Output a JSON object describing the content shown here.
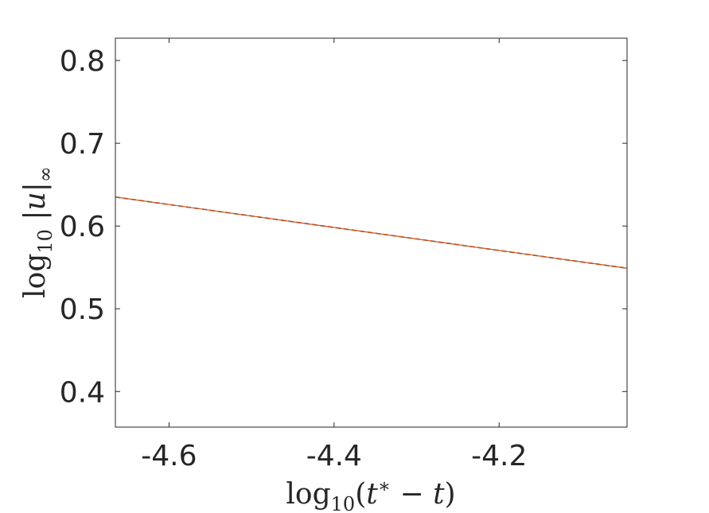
{
  "chart_data": {
    "type": "line",
    "title": "",
    "xlabel": "log10(t* − t)",
    "ylabel": "log10 |u|∞",
    "xlim": [
      -4.665,
      -4.045
    ],
    "ylim": [
      0.357,
      0.827
    ],
    "xticks": [
      -4.6,
      -4.4,
      -4.2
    ],
    "xtick_labels": [
      "-4.6",
      "-4.4",
      "-4.2"
    ],
    "yticks": [
      0.4,
      0.5,
      0.6,
      0.7,
      0.8
    ],
    "ytick_labels": [
      "0.4",
      "0.5",
      "0.6",
      "0.7",
      "0.8"
    ],
    "grid": false,
    "legend": "none",
    "series": [
      {
        "color": "#333333",
        "style": "dashed",
        "x": [
          -4.665,
          -4.045
        ],
        "y": [
          0.635,
          0.549
        ]
      },
      {
        "color": "#d95319",
        "style": "solid",
        "x": [
          -4.665,
          -4.045
        ],
        "y": [
          0.635,
          0.549
        ]
      }
    ]
  }
}
